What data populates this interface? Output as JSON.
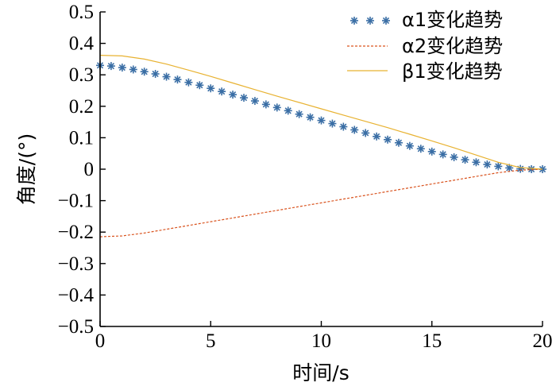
{
  "chart_data": {
    "type": "line",
    "xlabel": "时间/s",
    "ylabel": "角度/(°)",
    "xlim": [
      0,
      20
    ],
    "ylim": [
      -0.5,
      0.5
    ],
    "x_ticks": [
      "0",
      "5",
      "10",
      "15",
      "20"
    ],
    "y_ticks": [
      "0.5",
      "0.4",
      "0.3",
      "0.2",
      "0.1",
      "0",
      "−0.1",
      "−0.2",
      "−0.3",
      "−0.4",
      "−0.5"
    ],
    "grid": false,
    "legend_position": "top-right",
    "series": [
      {
        "name": "α1变化趋势",
        "style": "markers",
        "marker": "asterisk",
        "color": "#3a6ea5",
        "x": [
          0,
          0.5,
          1,
          1.5,
          2,
          2.5,
          3,
          3.5,
          4,
          4.5,
          5,
          5.5,
          6,
          6.5,
          7,
          7.5,
          8,
          8.5,
          9,
          9.5,
          10,
          10.5,
          11,
          11.5,
          12,
          12.5,
          13,
          13.5,
          14,
          14.5,
          15,
          15.5,
          16,
          16.5,
          17,
          17.5,
          18,
          18.5,
          19,
          19.5,
          20
        ],
        "y": [
          0.33,
          0.328,
          0.323,
          0.317,
          0.31,
          0.303,
          0.294,
          0.285,
          0.276,
          0.267,
          0.257,
          0.247,
          0.237,
          0.227,
          0.217,
          0.206,
          0.196,
          0.186,
          0.175,
          0.165,
          0.155,
          0.145,
          0.135,
          0.125,
          0.115,
          0.104,
          0.094,
          0.084,
          0.074,
          0.065,
          0.056,
          0.047,
          0.038,
          0.03,
          0.022,
          0.015,
          0.009,
          0.004,
          0.001,
          0.0,
          0.0
        ]
      },
      {
        "name": "α2变化趋势",
        "style": "dashed",
        "color": "#d9531e",
        "x": [
          0,
          1,
          2,
          3,
          4,
          5,
          6,
          7,
          8,
          9,
          10,
          11,
          12,
          13,
          14,
          15,
          16,
          17,
          18,
          19,
          20
        ],
        "y": [
          -0.215,
          -0.212,
          -0.203,
          -0.191,
          -0.179,
          -0.167,
          -0.155,
          -0.143,
          -0.131,
          -0.119,
          -0.107,
          -0.095,
          -0.083,
          -0.071,
          -0.059,
          -0.047,
          -0.035,
          -0.023,
          -0.011,
          -0.003,
          0.0
        ]
      },
      {
        "name": "β1变化趋势",
        "style": "solid",
        "color": "#e8b231",
        "x": [
          0,
          1,
          2,
          3,
          4,
          5,
          6,
          7,
          8,
          9,
          10,
          11,
          12,
          13,
          14,
          15,
          16,
          17,
          18,
          19,
          20
        ],
        "y": [
          0.362,
          0.36,
          0.35,
          0.334,
          0.315,
          0.295,
          0.274,
          0.253,
          0.232,
          0.212,
          0.192,
          0.172,
          0.152,
          0.132,
          0.111,
          0.09,
          0.068,
          0.045,
          0.022,
          0.005,
          0.0
        ]
      }
    ]
  }
}
